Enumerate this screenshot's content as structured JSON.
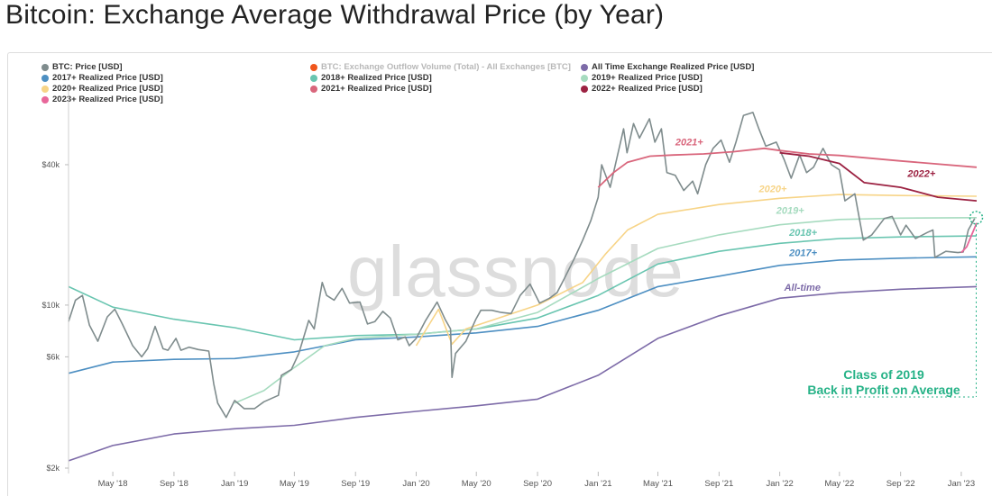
{
  "title": "Bitcoin: Exchange Average Withdrawal Price (by Year)",
  "watermark": "glassnode",
  "legend": [
    {
      "label": "BTC: Price [USD]",
      "color": "#7f8c8d",
      "muted": false
    },
    {
      "label": "BTC: Exchange Outflow Volume (Total) - All Exchanges [BTC]",
      "color": "#f0561c",
      "muted": true
    },
    {
      "label": "All Time Exchange Realized Price [USD]",
      "color": "#7d6ba8",
      "muted": false
    },
    {
      "label": "2017+ Realized Price [USD]",
      "color": "#4d8fc2",
      "muted": false
    },
    {
      "label": "2018+ Realized Price [USD]",
      "color": "#69c5b0",
      "muted": false
    },
    {
      "label": "2019+ Realized Price [USD]",
      "color": "#a6dbbf",
      "muted": false
    },
    {
      "label": "2020+ Realized Price [USD]",
      "color": "#f7d487",
      "muted": false
    },
    {
      "label": "2021+ Realized Price [USD]",
      "color": "#d9667c",
      "muted": false
    },
    {
      "label": "2022+ Realized Price [USD]",
      "color": "#9c2242",
      "muted": false
    },
    {
      "label": "2023+ Realized Price [USD]",
      "color": "#e8679a",
      "muted": false
    }
  ],
  "callout": {
    "line1": "Class of 2019",
    "line2": "Back in Profit on Average"
  },
  "chart_data": {
    "type": "line",
    "title": "Bitcoin: Exchange Average Withdrawal Price (by Year)",
    "y_scale": "log",
    "ylim": [
      2000,
      70000
    ],
    "xlim": [
      "2018-02-01",
      "2023-02-10"
    ],
    "y_ticks": [
      {
        "value": 2000,
        "label": "$2k"
      },
      {
        "value": 6000,
        "label": "$6k"
      },
      {
        "value": 10000,
        "label": "$10k"
      },
      {
        "value": 40000,
        "label": "$40k"
      }
    ],
    "x_ticks": [
      {
        "date": "2018-05-01",
        "label": "May '18"
      },
      {
        "date": "2018-09-01",
        "label": "Sep '18"
      },
      {
        "date": "2019-01-01",
        "label": "Jan '19"
      },
      {
        "date": "2019-05-01",
        "label": "May '19"
      },
      {
        "date": "2019-09-01",
        "label": "Sep '19"
      },
      {
        "date": "2020-01-01",
        "label": "Jan '20"
      },
      {
        "date": "2020-05-01",
        "label": "May '20"
      },
      {
        "date": "2020-09-01",
        "label": "Sep '20"
      },
      {
        "date": "2021-01-01",
        "label": "Jan '21"
      },
      {
        "date": "2021-05-01",
        "label": "May '21"
      },
      {
        "date": "2021-09-01",
        "label": "Sep '21"
      },
      {
        "date": "2022-01-01",
        "label": "Jan '22"
      },
      {
        "date": "2022-05-01",
        "label": "May '22"
      },
      {
        "date": "2022-09-01",
        "label": "Sep '22"
      },
      {
        "date": "2023-01-01",
        "label": "Jan '23"
      }
    ],
    "series": [
      {
        "name": "BTC: Price [USD]",
        "color": "#7f8c8d",
        "width": 1.6,
        "points": [
          [
            "2018-02-01",
            8500
          ],
          [
            "2018-02-15",
            10500
          ],
          [
            "2018-03-01",
            11000
          ],
          [
            "2018-03-15",
            8200
          ],
          [
            "2018-04-01",
            7000
          ],
          [
            "2018-04-20",
            8900
          ],
          [
            "2018-05-05",
            9600
          ],
          [
            "2018-05-20",
            8300
          ],
          [
            "2018-06-10",
            6700
          ],
          [
            "2018-06-28",
            6000
          ],
          [
            "2018-07-10",
            6500
          ],
          [
            "2018-07-25",
            8100
          ],
          [
            "2018-08-10",
            6500
          ],
          [
            "2018-08-20",
            6400
          ],
          [
            "2018-09-05",
            7200
          ],
          [
            "2018-09-15",
            6400
          ],
          [
            "2018-10-01",
            6600
          ],
          [
            "2018-10-20",
            6450
          ],
          [
            "2018-11-10",
            6350
          ],
          [
            "2018-11-20",
            4600
          ],
          [
            "2018-11-28",
            3800
          ],
          [
            "2018-12-15",
            3300
          ],
          [
            "2019-01-01",
            3900
          ],
          [
            "2019-01-20",
            3600
          ],
          [
            "2019-02-10",
            3600
          ],
          [
            "2019-03-01",
            3850
          ],
          [
            "2019-03-30",
            4100
          ],
          [
            "2019-04-05",
            5000
          ],
          [
            "2019-04-25",
            5300
          ],
          [
            "2019-05-10",
            6200
          ],
          [
            "2019-05-30",
            8600
          ],
          [
            "2019-06-10",
            7900
          ],
          [
            "2019-06-26",
            12500
          ],
          [
            "2019-07-05",
            11000
          ],
          [
            "2019-07-20",
            10500
          ],
          [
            "2019-08-05",
            11800
          ],
          [
            "2019-08-20",
            10200
          ],
          [
            "2019-09-10",
            10300
          ],
          [
            "2019-09-25",
            8300
          ],
          [
            "2019-10-10",
            8500
          ],
          [
            "2019-10-26",
            9400
          ],
          [
            "2019-11-10",
            8800
          ],
          [
            "2019-11-25",
            7100
          ],
          [
            "2019-12-10",
            7300
          ],
          [
            "2019-12-18",
            6700
          ],
          [
            "2020-01-01",
            7200
          ],
          [
            "2020-01-20",
            8600
          ],
          [
            "2020-02-12",
            10300
          ],
          [
            "2020-02-28",
            8700
          ],
          [
            "2020-03-10",
            7900
          ],
          [
            "2020-03-13",
            4900
          ],
          [
            "2020-03-20",
            6200
          ],
          [
            "2020-04-10",
            7000
          ],
          [
            "2020-04-30",
            8700
          ],
          [
            "2020-05-10",
            9500
          ],
          [
            "2020-06-01",
            9500
          ],
          [
            "2020-06-20",
            9300
          ],
          [
            "2020-07-10",
            9200
          ],
          [
            "2020-07-28",
            11000
          ],
          [
            "2020-08-17",
            12300
          ],
          [
            "2020-09-05",
            10200
          ],
          [
            "2020-09-25",
            10700
          ],
          [
            "2020-10-10",
            11300
          ],
          [
            "2020-10-25",
            13000
          ],
          [
            "2020-11-15",
            16000
          ],
          [
            "2020-12-01",
            19000
          ],
          [
            "2020-12-17",
            23000
          ],
          [
            "2021-01-01",
            29000
          ],
          [
            "2021-01-08",
            40000
          ],
          [
            "2021-01-25",
            32000
          ],
          [
            "2021-02-10",
            45000
          ],
          [
            "2021-02-21",
            57000
          ],
          [
            "2021-02-28",
            45000
          ],
          [
            "2021-03-13",
            60000
          ],
          [
            "2021-03-25",
            52000
          ],
          [
            "2021-04-14",
            63000
          ],
          [
            "2021-04-25",
            50000
          ],
          [
            "2021-05-08",
            57000
          ],
          [
            "2021-05-19",
            37000
          ],
          [
            "2021-06-05",
            36000
          ],
          [
            "2021-06-22",
            31000
          ],
          [
            "2021-07-10",
            34000
          ],
          [
            "2021-07-20",
            30000
          ],
          [
            "2021-08-05",
            40000
          ],
          [
            "2021-08-20",
            47000
          ],
          [
            "2021-09-05",
            51000
          ],
          [
            "2021-09-22",
            41000
          ],
          [
            "2021-10-05",
            50000
          ],
          [
            "2021-10-20",
            65000
          ],
          [
            "2021-11-08",
            67000
          ],
          [
            "2021-11-20",
            57000
          ],
          [
            "2021-12-04",
            48000
          ],
          [
            "2021-12-25",
            50000
          ],
          [
            "2022-01-10",
            42000
          ],
          [
            "2022-01-24",
            35000
          ],
          [
            "2022-02-10",
            44000
          ],
          [
            "2022-02-24",
            37000
          ],
          [
            "2022-03-10",
            39000
          ],
          [
            "2022-03-29",
            47000
          ],
          [
            "2022-04-15",
            40000
          ],
          [
            "2022-05-01",
            38000
          ],
          [
            "2022-05-12",
            28000
          ],
          [
            "2022-06-01",
            30000
          ],
          [
            "2022-06-18",
            19000
          ],
          [
            "2022-07-05",
            20000
          ],
          [
            "2022-07-30",
            23500
          ],
          [
            "2022-08-15",
            24000
          ],
          [
            "2022-09-01",
            20000
          ],
          [
            "2022-09-12",
            22000
          ],
          [
            "2022-10-01",
            19300
          ],
          [
            "2022-10-25",
            20500
          ],
          [
            "2022-11-05",
            21000
          ],
          [
            "2022-11-09",
            16000
          ],
          [
            "2022-12-01",
            17000
          ],
          [
            "2022-12-25",
            16800
          ],
          [
            "2023-01-05",
            16900
          ],
          [
            "2023-01-15",
            21000
          ],
          [
            "2023-01-28",
            23500
          ]
        ]
      },
      {
        "name": "All Time Exchange Realized Price [USD]",
        "color": "#7d6ba8",
        "width": 1.6,
        "label": "All-time",
        "label_date": "2022-01-10",
        "label_value": 11500,
        "points": [
          [
            "2018-02-01",
            2150
          ],
          [
            "2018-05-01",
            2500
          ],
          [
            "2018-09-01",
            2800
          ],
          [
            "2019-01-01",
            2950
          ],
          [
            "2019-05-01",
            3050
          ],
          [
            "2019-09-01",
            3300
          ],
          [
            "2020-01-01",
            3500
          ],
          [
            "2020-05-01",
            3700
          ],
          [
            "2020-09-01",
            3950
          ],
          [
            "2021-01-01",
            5000
          ],
          [
            "2021-05-01",
            7200
          ],
          [
            "2021-09-01",
            9000
          ],
          [
            "2022-01-01",
            10700
          ],
          [
            "2022-05-01",
            11300
          ],
          [
            "2022-09-01",
            11700
          ],
          [
            "2023-02-01",
            12000
          ]
        ]
      },
      {
        "name": "2017+ Realized Price [USD]",
        "color": "#4d8fc2",
        "width": 1.6,
        "label": "2017+",
        "label_date": "2022-01-20",
        "label_value": 16200,
        "points": [
          [
            "2018-02-01",
            5100
          ],
          [
            "2018-05-01",
            5700
          ],
          [
            "2018-09-01",
            5850
          ],
          [
            "2019-01-01",
            5900
          ],
          [
            "2019-05-01",
            6300
          ],
          [
            "2019-09-01",
            7100
          ],
          [
            "2020-01-01",
            7300
          ],
          [
            "2020-05-01",
            7600
          ],
          [
            "2020-09-01",
            8100
          ],
          [
            "2021-01-01",
            9500
          ],
          [
            "2021-05-01",
            12000
          ],
          [
            "2021-09-01",
            13300
          ],
          [
            "2022-01-01",
            14800
          ],
          [
            "2022-05-01",
            15600
          ],
          [
            "2022-09-01",
            15900
          ],
          [
            "2023-02-01",
            16100
          ]
        ]
      },
      {
        "name": "2018+ Realized Price [USD]",
        "color": "#69c5b0",
        "width": 1.6,
        "label": "2018+",
        "label_date": "2022-01-20",
        "label_value": 19800,
        "points": [
          [
            "2018-02-01",
            12000
          ],
          [
            "2018-05-01",
            9800
          ],
          [
            "2018-09-01",
            8700
          ],
          [
            "2019-01-01",
            8000
          ],
          [
            "2019-05-01",
            7100
          ],
          [
            "2019-09-01",
            7400
          ],
          [
            "2020-01-01",
            7500
          ],
          [
            "2020-05-01",
            7900
          ],
          [
            "2020-09-01",
            8800
          ],
          [
            "2021-01-01",
            11000
          ],
          [
            "2021-05-01",
            15000
          ],
          [
            "2021-09-01",
            17000
          ],
          [
            "2022-01-01",
            18400
          ],
          [
            "2022-05-01",
            19300
          ],
          [
            "2022-09-01",
            19600
          ],
          [
            "2023-02-01",
            19800
          ]
        ]
      },
      {
        "name": "2019+ Realized Price [USD]",
        "color": "#a6dbbf",
        "width": 1.6,
        "label": "2019+",
        "label_date": "2021-12-25",
        "label_value": 24600,
        "points": [
          [
            "2019-01-01",
            3800
          ],
          [
            "2019-03-01",
            4300
          ],
          [
            "2019-05-01",
            5400
          ],
          [
            "2019-07-01",
            6700
          ],
          [
            "2019-09-01",
            7200
          ],
          [
            "2020-01-01",
            7500
          ],
          [
            "2020-05-01",
            7900
          ],
          [
            "2020-09-01",
            9300
          ],
          [
            "2021-01-01",
            13000
          ],
          [
            "2021-05-01",
            17500
          ],
          [
            "2021-09-01",
            20000
          ],
          [
            "2022-01-01",
            22100
          ],
          [
            "2022-05-01",
            23300
          ],
          [
            "2022-09-01",
            23600
          ],
          [
            "2023-02-01",
            23700
          ]
        ]
      },
      {
        "name": "2020+ Realized Price [USD]",
        "color": "#f7d487",
        "width": 1.6,
        "label": "2020+",
        "label_date": "2021-11-20",
        "label_value": 30500,
        "points": [
          [
            "2020-01-01",
            6700
          ],
          [
            "2020-02-15",
            9600
          ],
          [
            "2020-03-13",
            6800
          ],
          [
            "2020-04-10",
            7900
          ],
          [
            "2020-06-01",
            8600
          ],
          [
            "2020-09-01",
            10000
          ],
          [
            "2020-12-01",
            12500
          ],
          [
            "2021-01-15",
            16500
          ],
          [
            "2021-03-01",
            21000
          ],
          [
            "2021-05-01",
            24500
          ],
          [
            "2021-09-01",
            27000
          ],
          [
            "2022-01-01",
            28700
          ],
          [
            "2022-05-01",
            29800
          ],
          [
            "2022-09-01",
            29500
          ],
          [
            "2023-02-01",
            29300
          ]
        ]
      },
      {
        "name": "2021+ Realized Price [USD]",
        "color": "#d9667c",
        "width": 1.8,
        "label": "2021+",
        "label_date": "2021-06-05",
        "label_value": 48500,
        "points": [
          [
            "2021-01-01",
            32000
          ],
          [
            "2021-02-01",
            37000
          ],
          [
            "2021-03-01",
            41000
          ],
          [
            "2021-04-15",
            43500
          ],
          [
            "2021-06-01",
            44000
          ],
          [
            "2021-08-01",
            44500
          ],
          [
            "2021-10-01",
            45500
          ],
          [
            "2021-12-01",
            47000
          ],
          [
            "2022-01-01",
            46000
          ],
          [
            "2022-03-01",
            44500
          ],
          [
            "2022-05-01",
            43800
          ],
          [
            "2022-09-01",
            41500
          ],
          [
            "2023-02-01",
            39000
          ]
        ]
      },
      {
        "name": "2022+ Realized Price [USD]",
        "color": "#9c2242",
        "width": 1.8,
        "label": "2022+",
        "label_date": "2022-09-15",
        "label_value": 35500,
        "points": [
          [
            "2022-01-01",
            45000
          ],
          [
            "2022-03-01",
            43500
          ],
          [
            "2022-05-01",
            40500
          ],
          [
            "2022-06-20",
            33500
          ],
          [
            "2022-09-01",
            32000
          ],
          [
            "2022-11-15",
            29000
          ],
          [
            "2023-02-01",
            28000
          ]
        ]
      },
      {
        "name": "2023+ Realized Price [USD]",
        "color": "#e8679a",
        "width": 1.8,
        "points": [
          [
            "2023-01-01",
            16800
          ],
          [
            "2023-01-12",
            17800
          ],
          [
            "2023-01-22",
            20000
          ],
          [
            "2023-02-01",
            22500
          ]
        ]
      }
    ]
  }
}
